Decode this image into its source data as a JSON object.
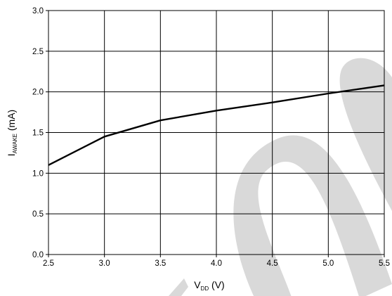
{
  "chart_data": {
    "type": "line",
    "title": "",
    "xlabel": {
      "main": "V",
      "sub": "DD",
      "unit": " (V)"
    },
    "ylabel": {
      "main": "I",
      "sub": "AWAKE",
      "unit": " (mA)"
    },
    "xlim": [
      2.5,
      5.5
    ],
    "ylim": [
      0.0,
      3.0
    ],
    "x_ticks": [
      2.5,
      3.0,
      3.5,
      4.0,
      4.5,
      5.0,
      5.5
    ],
    "y_ticks": [
      0.0,
      0.5,
      1.0,
      1.5,
      2.0,
      2.5,
      3.0
    ],
    "x_tick_labels": [
      "2.5",
      "3.0",
      "3.5",
      "4.0",
      "4.5",
      "5.0",
      "5.5"
    ],
    "y_tick_labels": [
      "0.0",
      "0.5",
      "1.0",
      "1.5",
      "2.0",
      "2.5",
      "3.0"
    ],
    "grid": true,
    "series": [
      {
        "x": [
          2.5,
          3.0,
          3.5,
          4.0,
          4.5,
          5.0,
          5.5
        ],
        "y": [
          1.1,
          1.45,
          1.65,
          1.77,
          1.87,
          1.98,
          2.08
        ],
        "color": "#000000"
      }
    ],
    "watermark_color": "#d9d9d9"
  }
}
